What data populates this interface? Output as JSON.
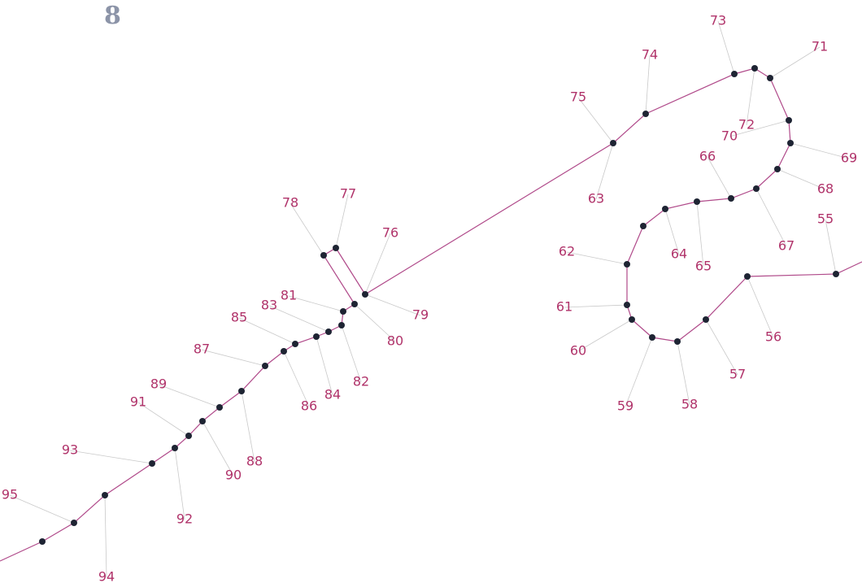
{
  "page_number": "8",
  "colors": {
    "path_line": "#b04a8a",
    "leader_line": "#c9c9c9",
    "point": "#1e2433",
    "label": "#b0336a",
    "page_number": "#8c94a8"
  },
  "points": [
    {
      "label": "55"
    },
    {
      "label": "56"
    },
    {
      "label": "57"
    },
    {
      "label": "58"
    },
    {
      "label": "59"
    },
    {
      "label": "60"
    },
    {
      "label": "61"
    },
    {
      "label": "62"
    },
    {
      "label": "63"
    },
    {
      "label": "64"
    },
    {
      "label": "65"
    },
    {
      "label": "66"
    },
    {
      "label": "67"
    },
    {
      "label": "68"
    },
    {
      "label": "69"
    },
    {
      "label": "70"
    },
    {
      "label": "71"
    },
    {
      "label": "72"
    },
    {
      "label": "73"
    },
    {
      "label": "74"
    },
    {
      "label": "75"
    },
    {
      "label": "76"
    },
    {
      "label": "77"
    },
    {
      "label": "78"
    },
    {
      "label": "79"
    },
    {
      "label": "80"
    },
    {
      "label": "81"
    },
    {
      "label": "82"
    },
    {
      "label": "83"
    },
    {
      "label": "84"
    },
    {
      "label": "85"
    },
    {
      "label": "86"
    },
    {
      "label": "87"
    },
    {
      "label": "88"
    },
    {
      "label": "89"
    },
    {
      "label": "90"
    },
    {
      "label": "91"
    },
    {
      "label": "92"
    },
    {
      "label": "93"
    },
    {
      "label": "94"
    },
    {
      "label": "95"
    }
  ]
}
